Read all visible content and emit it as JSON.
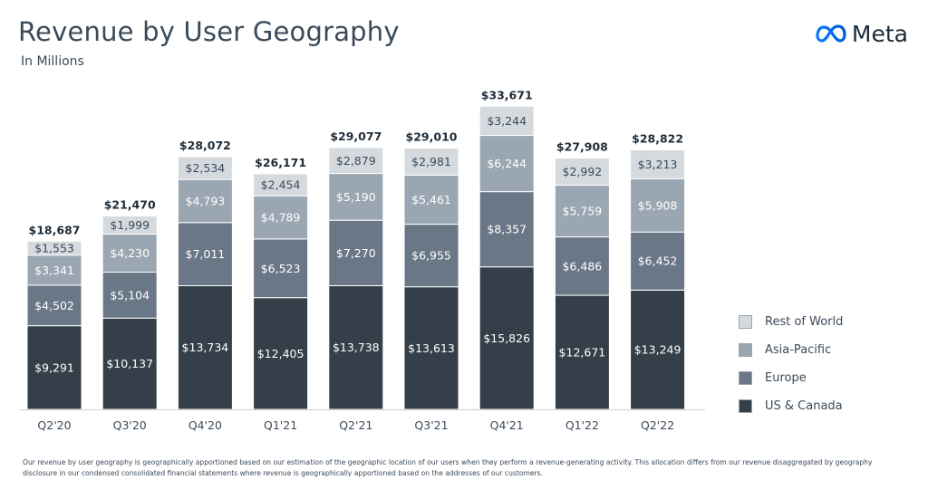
{
  "header": {
    "title": "Revenue by User Geography",
    "subtitle": "In Millions",
    "logo_text": "Meta"
  },
  "colors": {
    "us_canada": "#343f49",
    "europe": "#6a7786",
    "asia_pacific": "#9aa6b2",
    "rest_of_world": "#d5dadf",
    "text": "#3b4a5a"
  },
  "chart_data": {
    "type": "bar",
    "stacked": true,
    "categories": [
      "Q2'20",
      "Q3'20",
      "Q4'20",
      "Q1'21",
      "Q2'21",
      "Q3'21",
      "Q4'21",
      "Q1'22",
      "Q2'22"
    ],
    "series": [
      {
        "name": "US & Canada",
        "values": [
          9291,
          10137,
          13734,
          12405,
          13738,
          13613,
          15826,
          12671,
          13249
        ],
        "labels": [
          "$9,291",
          "$10,137",
          "$13,734",
          "$12,405",
          "$13,738",
          "$13,613",
          "$15,826",
          "$12,671",
          "$13,249"
        ]
      },
      {
        "name": "Europe",
        "values": [
          4502,
          5104,
          7011,
          6523,
          7270,
          6955,
          8357,
          6486,
          6452
        ],
        "labels": [
          "$4,502",
          "$5,104",
          "$7,011",
          "$6,523",
          "$7,270",
          "$6,955",
          "$8,357",
          "$6,486",
          "$6,452"
        ]
      },
      {
        "name": "Asia-Pacific",
        "values": [
          3341,
          4230,
          4793,
          4789,
          5190,
          5461,
          6244,
          5759,
          5908
        ],
        "labels": [
          "$3,341",
          "$4,230",
          "$4,793",
          "$4,789",
          "$5,190",
          "$5,461",
          "$6,244",
          "$5,759",
          "$5,908"
        ]
      },
      {
        "name": "Rest of World",
        "values": [
          1553,
          1999,
          2534,
          2454,
          2879,
          2981,
          3244,
          2992,
          3213
        ],
        "labels": [
          "$1,553",
          "$1,999",
          "$2,534",
          "$2,454",
          "$2,879",
          "$2,981",
          "$3,244",
          "$2,992",
          "$3,213"
        ]
      }
    ],
    "totals": [
      18687,
      21470,
      28072,
      26171,
      29077,
      29010,
      33671,
      27908,
      28822
    ],
    "total_labels": [
      "$18,687",
      "$21,470",
      "$28,072",
      "$26,171",
      "$29,077",
      "$29,010",
      "$33,671",
      "$27,908",
      "$28,822"
    ],
    "legend": [
      "Rest of World",
      "Asia-Pacific",
      "Europe",
      "US & Canada"
    ],
    "legend_position": "right",
    "grid": false
  },
  "footnote": "Our revenue by user geography is geographically apportioned based on our estimation of the geographic location of our users when they perform a revenue-generating activity. This allocation differs from our revenue disaggregated by geography disclosure in our condensed consolidated financial statements where revenue is geographically apportioned based on the addresses of our customers."
}
